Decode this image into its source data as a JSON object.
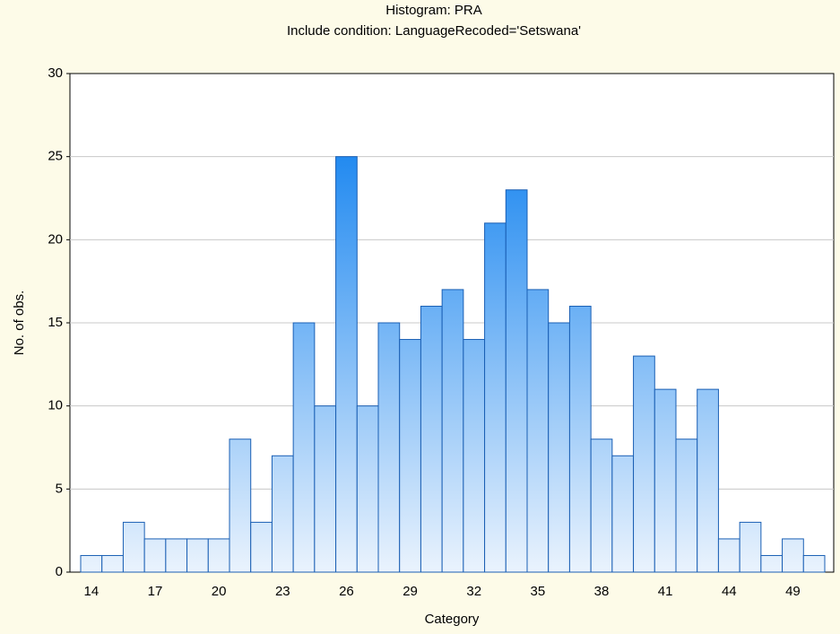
{
  "chart_data": {
    "type": "bar",
    "title": "Histogram: PRA",
    "subtitle": "Include condition: LanguageRecoded='Setswana'",
    "xlabel": "Category",
    "ylabel": "No. of obs.",
    "categories": [
      "14",
      null,
      null,
      "17",
      null,
      null,
      "20",
      null,
      null,
      "23",
      null,
      null,
      "26",
      null,
      null,
      "29",
      null,
      null,
      "32",
      null,
      null,
      "35",
      null,
      null,
      "38",
      null,
      null,
      "41",
      null,
      null,
      "44",
      null,
      null,
      "49",
      null
    ],
    "values": [
      1,
      1,
      3,
      2,
      2,
      2,
      2,
      8,
      3,
      7,
      15,
      10,
      25,
      10,
      15,
      14,
      16,
      17,
      14,
      21,
      23,
      17,
      15,
      16,
      8,
      7,
      13,
      11,
      8,
      11,
      2,
      3,
      1,
      2,
      1
    ],
    "color": "#1e88f0",
    "ylim": [
      0,
      30
    ],
    "yticks": [
      0,
      5,
      10,
      15,
      20,
      25,
      30
    ],
    "grid": true
  }
}
